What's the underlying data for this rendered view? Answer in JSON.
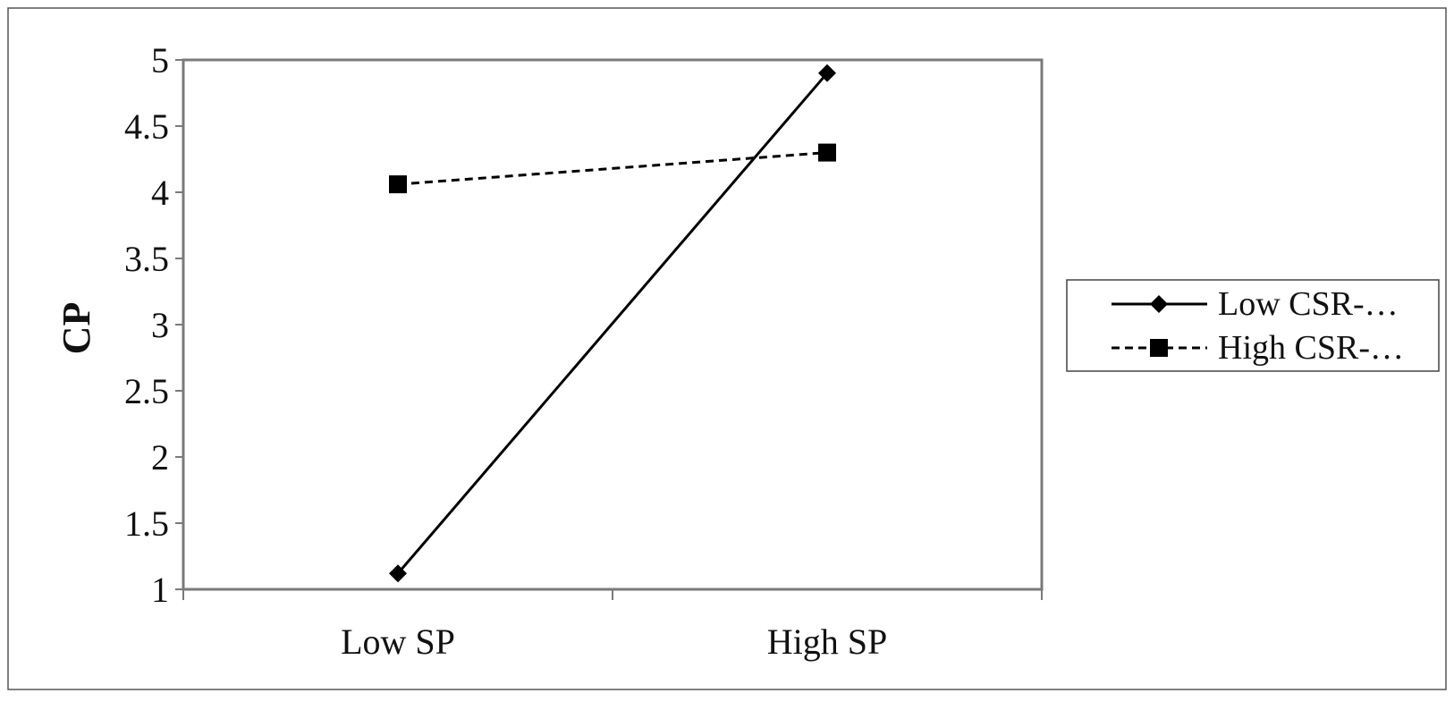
{
  "chart_data": {
    "type": "line",
    "title": "",
    "xlabel": "",
    "ylabel": "CP",
    "categories": [
      "Low SP",
      "High SP"
    ],
    "ylim": [
      1,
      5
    ],
    "yticks": [
      "1",
      "1.5",
      "2",
      "2.5",
      "3",
      "3.5",
      "4",
      "4.5",
      "5"
    ],
    "grid": false,
    "legend_position": "right",
    "series": [
      {
        "name": "Low CSR-…",
        "values": [
          1.12,
          4.9
        ],
        "line_style": "solid",
        "marker": "diamond",
        "color": "#000000"
      },
      {
        "name": "High CSR-…",
        "values": [
          4.06,
          4.3
        ],
        "line_style": "dashed",
        "marker": "square",
        "color": "#000000"
      }
    ]
  }
}
